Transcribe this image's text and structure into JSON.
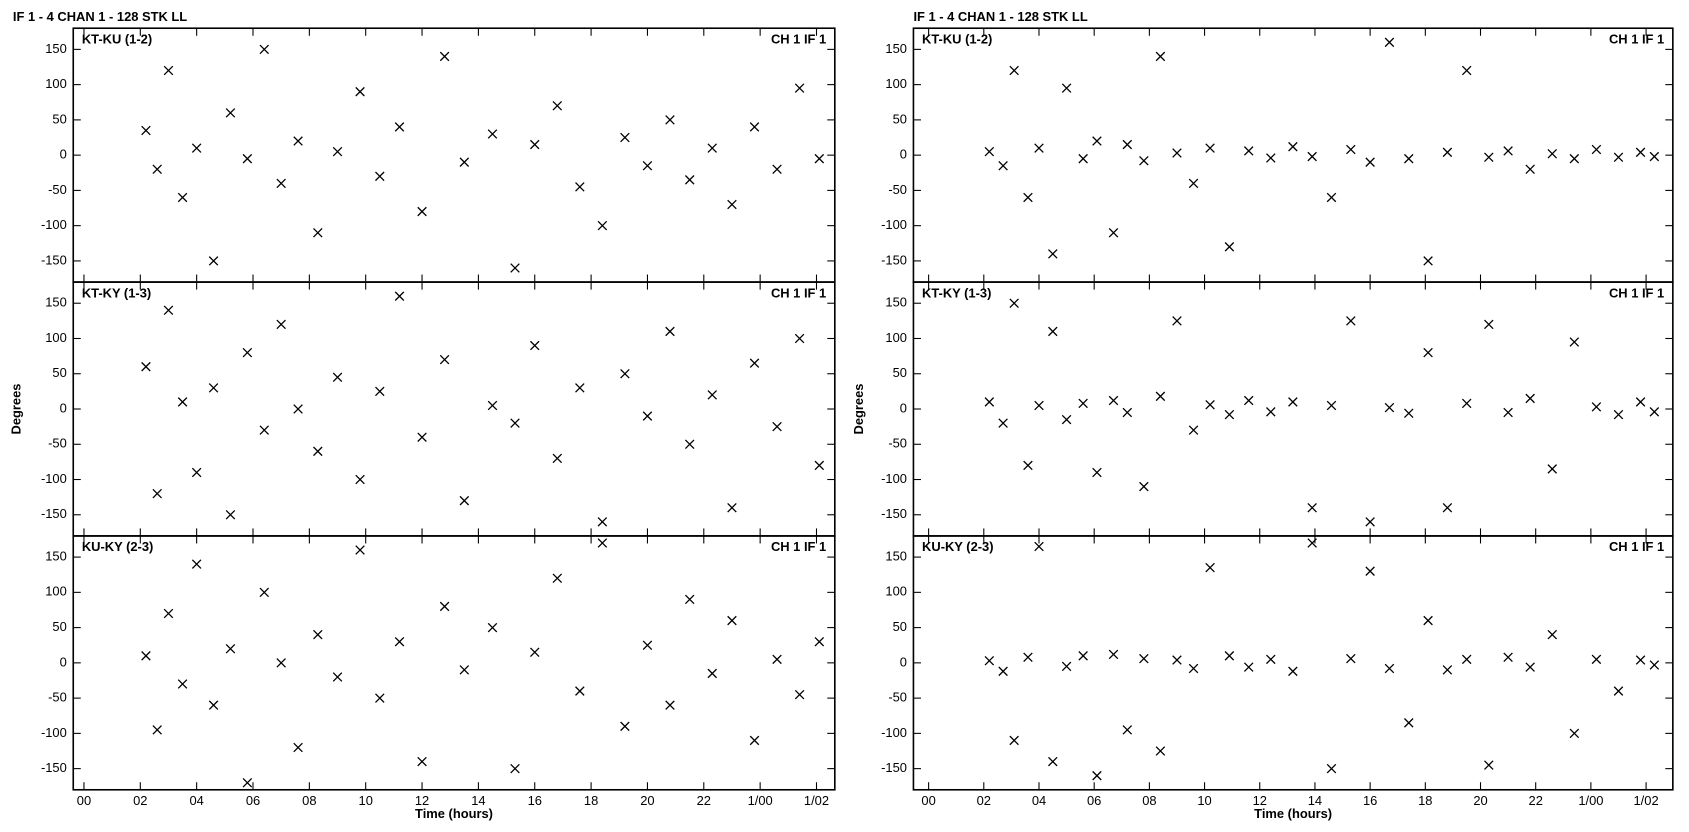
{
  "chart_data": [
    {
      "type": "scatter",
      "title": "IF 1 - 4   CHAN 1 - 128   STK LL",
      "xlabel": "Time (hours)",
      "ylabel": "Degrees",
      "marker": "x",
      "color": "#000000",
      "xlim": [
        -0.38,
        26.65
      ],
      "ylim": [
        -180,
        180
      ],
      "xticks": [
        {
          "value": 0,
          "label": "00"
        },
        {
          "value": 2,
          "label": "02"
        },
        {
          "value": 4,
          "label": "04"
        },
        {
          "value": 6,
          "label": "06"
        },
        {
          "value": 8,
          "label": "08"
        },
        10,
        12,
        14,
        16,
        18,
        20,
        22,
        {
          "value": 24,
          "label": "1/00"
        },
        {
          "value": 26,
          "label": "1/02"
        }
      ],
      "yticks": [
        -150,
        -100,
        -50,
        0,
        50,
        100,
        150
      ],
      "panels": [
        {
          "label": "KT-KU (1-2)",
          "annotation": "CH 1  IF 1",
          "x": [
            2.2,
            2.6,
            3.0,
            3.5,
            4.0,
            4.6,
            5.2,
            5.8,
            6.4,
            7.0,
            7.6,
            8.3,
            9.0,
            9.8,
            10.5,
            11.2,
            12.0,
            12.8,
            13.5,
            14.5,
            15.3,
            16.0,
            16.8,
            17.6,
            18.4,
            19.2,
            20.0,
            20.8,
            21.5,
            22.3,
            23.0,
            23.8,
            24.6,
            25.4,
            26.1
          ],
          "y": [
            35,
            -20,
            120,
            -60,
            10,
            -150,
            60,
            -5,
            150,
            -40,
            20,
            -110,
            5,
            90,
            -30,
            40,
            -80,
            140,
            -10,
            30,
            -160,
            15,
            70,
            -45,
            -100,
            25,
            -15,
            50,
            -35,
            10,
            -70,
            40,
            -20,
            95,
            -5
          ]
        },
        {
          "label": "KT-KY (1-3)",
          "annotation": "CH 1  IF 1",
          "x": [
            2.2,
            2.6,
            3.0,
            3.5,
            4.0,
            4.6,
            5.2,
            5.8,
            6.4,
            7.0,
            7.6,
            8.3,
            9.0,
            9.8,
            10.5,
            11.2,
            12.0,
            12.8,
            13.5,
            14.5,
            15.3,
            16.0,
            16.8,
            17.6,
            18.4,
            19.2,
            20.0,
            20.8,
            21.5,
            22.3,
            23.0,
            23.8,
            24.6,
            25.4,
            26.1
          ],
          "y": [
            60,
            -120,
            140,
            10,
            -90,
            30,
            -150,
            80,
            -30,
            120,
            0,
            -60,
            45,
            -100,
            25,
            160,
            -40,
            70,
            -130,
            5,
            -20,
            90,
            -70,
            30,
            -160,
            50,
            -10,
            110,
            -50,
            20,
            -140,
            65,
            -25,
            100,
            -80
          ]
        },
        {
          "label": "KU-KY (2-3)",
          "annotation": "CH 1  IF 1",
          "x": [
            2.2,
            2.6,
            3.0,
            3.5,
            4.0,
            4.6,
            5.2,
            5.8,
            6.4,
            7.0,
            7.6,
            8.3,
            9.0,
            9.8,
            10.5,
            11.2,
            12.0,
            12.8,
            13.5,
            14.5,
            15.3,
            16.0,
            16.8,
            17.6,
            18.4,
            19.2,
            20.0,
            20.8,
            21.5,
            22.3,
            23.0,
            23.8,
            24.6,
            25.4,
            26.1
          ],
          "y": [
            10,
            -95,
            70,
            -30,
            140,
            -60,
            20,
            -170,
            100,
            0,
            -120,
            40,
            -20,
            160,
            -50,
            30,
            -140,
            80,
            -10,
            50,
            -150,
            15,
            120,
            -40,
            170,
            -90,
            25,
            -60,
            90,
            -15,
            60,
            -110,
            5,
            -45,
            30
          ]
        }
      ]
    },
    {
      "type": "scatter",
      "title": "IF 1 - 4   CHAN 1 - 128   STK LL",
      "xlabel": "Time (hours)",
      "ylabel": "Degrees",
      "marker": "x",
      "color": "#000000",
      "xlim": [
        -0.55,
        26.97
      ],
      "ylim": [
        -180,
        180
      ],
      "xticks": [
        {
          "value": 0,
          "label": "00"
        },
        {
          "value": 2,
          "label": "02"
        },
        {
          "value": 4,
          "label": "04"
        },
        {
          "value": 6,
          "label": "06"
        },
        {
          "value": 8,
          "label": "08"
        },
        10,
        12,
        14,
        16,
        18,
        20,
        22,
        {
          "value": 24,
          "label": "1/00"
        },
        {
          "value": 26,
          "label": "1/02"
        }
      ],
      "yticks": [
        -150,
        -100,
        -50,
        0,
        50,
        100,
        150
      ],
      "panels": [
        {
          "label": "KT-KU (1-2)",
          "annotation": "CH 1  IF 1",
          "x": [
            2.2,
            2.7,
            3.1,
            3.6,
            4.0,
            4.5,
            5.0,
            5.6,
            6.1,
            6.7,
            7.2,
            7.8,
            8.4,
            9.0,
            9.6,
            10.2,
            10.9,
            11.6,
            12.4,
            13.2,
            13.9,
            14.6,
            15.3,
            16.0,
            16.7,
            17.4,
            18.1,
            18.8,
            19.5,
            20.3,
            21.0,
            21.8,
            22.6,
            23.4,
            24.2,
            25.0,
            25.8,
            26.3
          ],
          "y": [
            5,
            -15,
            120,
            -60,
            10,
            -140,
            95,
            -5,
            20,
            -110,
            15,
            -8,
            140,
            3,
            -40,
            10,
            -130,
            6,
            -4,
            12,
            -2,
            -60,
            8,
            -10,
            160,
            -5,
            -150,
            4,
            120,
            -3,
            6,
            -20,
            2,
            -5,
            8,
            -3,
            4,
            -2
          ]
        },
        {
          "label": "KT-KY (1-3)",
          "annotation": "CH 1  IF 1",
          "x": [
            2.2,
            2.7,
            3.1,
            3.6,
            4.0,
            4.5,
            5.0,
            5.6,
            6.1,
            6.7,
            7.2,
            7.8,
            8.4,
            9.0,
            9.6,
            10.2,
            10.9,
            11.6,
            12.4,
            13.2,
            13.9,
            14.6,
            15.3,
            16.0,
            16.7,
            17.4,
            18.1,
            18.8,
            19.5,
            20.3,
            21.0,
            21.8,
            22.6,
            23.4,
            24.2,
            25.0,
            25.8,
            26.3
          ],
          "y": [
            10,
            -20,
            150,
            -80,
            5,
            110,
            -15,
            8,
            -90,
            12,
            -5,
            -110,
            18,
            125,
            -30,
            6,
            -8,
            12,
            -4,
            10,
            -140,
            5,
            125,
            -160,
            2,
            -6,
            80,
            -140,
            8,
            120,
            -5,
            15,
            -85,
            95,
            3,
            -8,
            10,
            -4
          ]
        },
        {
          "label": "KU-KY (2-3)",
          "annotation": "CH 1  IF 1",
          "x": [
            2.2,
            2.7,
            3.1,
            3.6,
            4.0,
            4.5,
            5.0,
            5.6,
            6.1,
            6.7,
            7.2,
            7.8,
            8.4,
            9.0,
            9.6,
            10.2,
            10.9,
            11.6,
            12.4,
            13.2,
            13.9,
            14.6,
            15.3,
            16.0,
            16.7,
            17.4,
            18.1,
            18.8,
            19.5,
            20.3,
            21.0,
            21.8,
            22.6,
            23.4,
            24.2,
            25.0,
            25.8,
            26.3
          ],
          "y": [
            3,
            -12,
            -110,
            8,
            165,
            -140,
            -5,
            10,
            -160,
            12,
            -95,
            6,
            -125,
            4,
            -8,
            135,
            10,
            -6,
            5,
            -12,
            170,
            -150,
            6,
            130,
            -8,
            -85,
            60,
            -10,
            5,
            -145,
            8,
            -6,
            40,
            -100,
            5,
            -40,
            4,
            -3
          ]
        }
      ]
    }
  ]
}
